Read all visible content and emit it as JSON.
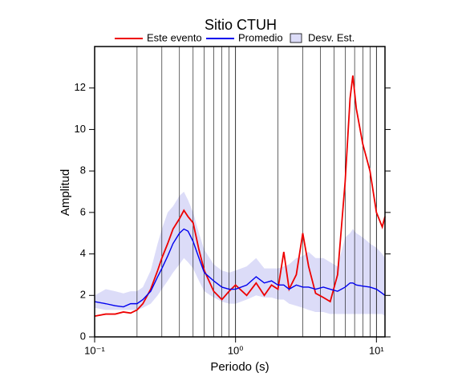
{
  "chart_data": {
    "type": "line",
    "title": "Sitio CTUH",
    "xlabel": "Periodo (s)",
    "ylabel": "Amplitud",
    "xscale": "log",
    "xlim": [
      0.1,
      11.5
    ],
    "ylim": [
      0,
      14
    ],
    "xticks": [
      {
        "value": 0.1,
        "label": "10⁻¹"
      },
      {
        "value": 1,
        "label": "10⁰"
      },
      {
        "value": 10,
        "label": "10¹"
      }
    ],
    "xminorticks": [
      0.2,
      0.3,
      0.4,
      0.5,
      0.6,
      0.7,
      0.8,
      0.9,
      2,
      3,
      4,
      5,
      6,
      7,
      8,
      9
    ],
    "yticks": [
      0,
      2,
      4,
      6,
      8,
      10,
      12
    ],
    "xgrid": true,
    "legend": "top",
    "x": [
      0.1,
      0.12,
      0.14,
      0.16,
      0.18,
      0.2,
      0.22,
      0.25,
      0.28,
      0.3,
      0.33,
      0.36,
      0.4,
      0.43,
      0.46,
      0.5,
      0.55,
      0.6,
      0.7,
      0.8,
      0.9,
      1.0,
      1.2,
      1.4,
      1.6,
      1.8,
      2.0,
      2.2,
      2.4,
      2.7,
      3.0,
      3.3,
      3.7,
      4.2,
      4.7,
      5.3,
      6.0,
      6.5,
      6.8,
      7.2,
      8.0,
      9.0,
      10.0,
      11.0,
      11.5
    ],
    "series": [
      {
        "name": "Este evento",
        "color": "#ee0000",
        "values": [
          1.0,
          1.1,
          1.1,
          1.2,
          1.15,
          1.3,
          1.6,
          2.3,
          3.2,
          3.8,
          4.5,
          5.2,
          5.7,
          6.1,
          5.8,
          5.5,
          4.2,
          3.2,
          2.2,
          1.8,
          2.2,
          2.5,
          2.0,
          2.6,
          2.0,
          2.5,
          2.3,
          4.1,
          2.3,
          3.0,
          5.0,
          3.4,
          2.1,
          1.9,
          1.7,
          3.0,
          7.5,
          11.5,
          12.6,
          11.0,
          9.3,
          8.0,
          6.0,
          5.3,
          5.8
        ]
      },
      {
        "name": "Promedio",
        "color": "#0000ee",
        "values": [
          1.7,
          1.6,
          1.5,
          1.45,
          1.6,
          1.6,
          1.8,
          2.2,
          2.9,
          3.3,
          3.9,
          4.5,
          5.0,
          5.2,
          5.1,
          4.6,
          3.8,
          3.1,
          2.7,
          2.4,
          2.3,
          2.3,
          2.5,
          2.9,
          2.6,
          2.7,
          2.5,
          2.5,
          2.3,
          2.5,
          2.4,
          2.4,
          2.3,
          2.4,
          2.3,
          2.2,
          2.4,
          2.6,
          2.6,
          2.5,
          2.45,
          2.4,
          2.3,
          2.1,
          2.0
        ]
      },
      {
        "name": "Desv. Est.",
        "color": "#dcdcf8",
        "upper": [
          2.0,
          2.3,
          2.2,
          2.1,
          2.2,
          2.2,
          2.4,
          3.2,
          4.5,
          5.2,
          6.0,
          6.3,
          6.8,
          7.0,
          6.6,
          6.0,
          5.0,
          4.2,
          3.5,
          3.2,
          3.1,
          3.2,
          3.4,
          3.8,
          3.3,
          3.3,
          3.3,
          3.4,
          3.5,
          3.8,
          3.9,
          4.1,
          3.8,
          3.8,
          3.6,
          3.4,
          4.8,
          5.0,
          5.2,
          5.0,
          4.8,
          4.5,
          4.3,
          4.0,
          3.8
        ],
        "lower": [
          1.4,
          1.3,
          1.3,
          1.3,
          1.3,
          1.3,
          1.4,
          1.6,
          2.0,
          2.3,
          2.7,
          3.1,
          3.5,
          3.8,
          3.6,
          3.3,
          2.7,
          2.2,
          1.9,
          1.7,
          1.6,
          1.6,
          1.8,
          2.0,
          1.9,
          1.9,
          1.8,
          1.8,
          1.6,
          1.5,
          1.4,
          1.3,
          1.2,
          1.2,
          1.1,
          1.1,
          1.1,
          1.1,
          1.1,
          1.1,
          1.1,
          1.1,
          1.1,
          1.1,
          1.0
        ]
      }
    ]
  }
}
